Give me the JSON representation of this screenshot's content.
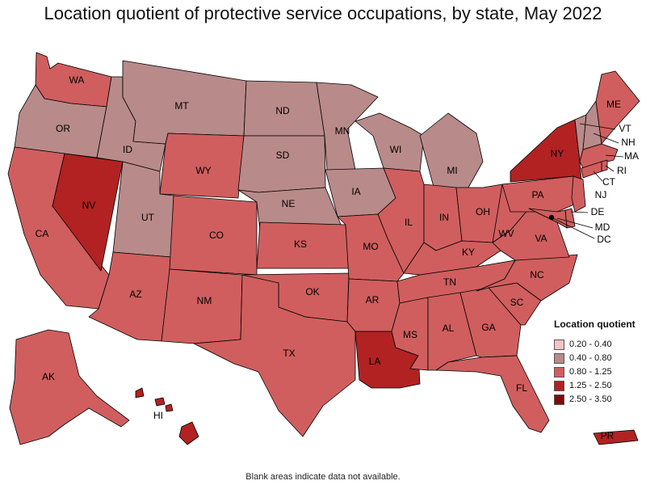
{
  "title": "Location quotient of protective service occupations, by state, May 2022",
  "footnote": "Blank areas indicate data not available.",
  "legend": {
    "title": "Location quotient",
    "items": [
      {
        "label": "0.20 - 0.40",
        "color": "#f7c2c5"
      },
      {
        "label": "0.40 - 0.80",
        "color": "#b98a8a"
      },
      {
        "label": "0.80 - 1.25",
        "color": "#d05e5e"
      },
      {
        "label": "1.25 - 2.50",
        "color": "#b22222"
      },
      {
        "label": "2.50 - 3.50",
        "color": "#7f0b0b"
      }
    ]
  },
  "chart_data": {
    "type": "choropleth",
    "bins": [
      "0.20 - 0.40",
      "0.40 - 0.80",
      "0.80 - 1.25",
      "1.25 - 2.50",
      "2.50 - 3.50"
    ],
    "states": {
      "WA": "0.80 - 1.25",
      "OR": "0.40 - 0.80",
      "CA": "0.80 - 1.25",
      "NV": "1.25 - 2.50",
      "ID": "0.40 - 0.80",
      "MT": "0.40 - 0.80",
      "WY": "0.80 - 1.25",
      "UT": "0.40 - 0.80",
      "AZ": "0.80 - 1.25",
      "CO": "0.80 - 1.25",
      "NM": "0.80 - 1.25",
      "ND": "0.40 - 0.80",
      "SD": "0.40 - 0.80",
      "NE": "0.40 - 0.80",
      "KS": "0.80 - 1.25",
      "OK": "0.80 - 1.25",
      "TX": "0.80 - 1.25",
      "MN": "0.40 - 0.80",
      "IA": "0.40 - 0.80",
      "MO": "0.80 - 1.25",
      "AR": "0.80 - 1.25",
      "LA": "1.25 - 2.50",
      "WI": "0.40 - 0.80",
      "IL": "0.80 - 1.25",
      "MI": "0.40 - 0.80",
      "IN": "0.80 - 1.25",
      "OH": "0.80 - 1.25",
      "KY": "0.80 - 1.25",
      "TN": "0.80 - 1.25",
      "MS": "0.80 - 1.25",
      "AL": "0.80 - 1.25",
      "GA": "0.80 - 1.25",
      "FL": "0.80 - 1.25",
      "SC": "0.80 - 1.25",
      "NC": "0.80 - 1.25",
      "VA": "0.80 - 1.25",
      "WV": "0.80 - 1.25",
      "PA": "0.80 - 1.25",
      "NY": "1.25 - 2.50",
      "VT": "0.40 - 0.80",
      "NH": "0.40 - 0.80",
      "ME": "0.80 - 1.25",
      "MA": "0.80 - 1.25",
      "RI": "0.80 - 1.25",
      "CT": "0.80 - 1.25",
      "NJ": "0.80 - 1.25",
      "DE": "0.80 - 1.25",
      "MD": "0.80 - 1.25",
      "DC": "1.25 - 2.50",
      "AK": "0.80 - 1.25",
      "HI": "1.25 - 2.50",
      "PR": "1.25 - 2.50"
    }
  }
}
